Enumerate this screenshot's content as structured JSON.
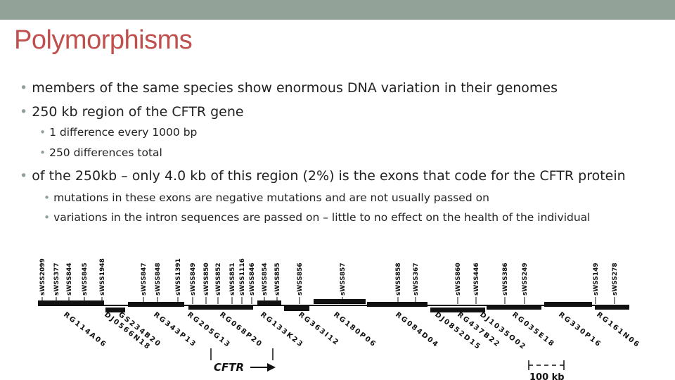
{
  "title": "Polymorphisms",
  "bullets": [
    {
      "level": 1,
      "text": "members of the same species show enormous DNA variation in their genomes"
    },
    {
      "level": 1,
      "text": "250 kb region of the CFTR gene"
    },
    {
      "level": 2,
      "text": "1 difference every 1000 bp"
    },
    {
      "level": 2,
      "text": "250 differences total"
    },
    {
      "level": 1,
      "text": "of the 250kb – only 4.0 kb of this region (2%) is the exons that code for the CFTR protein"
    },
    {
      "level": 2,
      "text": "mutations in these exons are negative mutations and are not usually passed on"
    },
    {
      "level": 2,
      "text": "variations in the intron sequences are passed on – little to no effect on the health of the individual"
    }
  ],
  "map": {
    "top_labels": [
      "sWSS2099",
      "sWSS377",
      "sWSS844",
      "sWSS845",
      "sWSS1948",
      "sWSS847",
      "sWSS848",
      "sWSS1391",
      "sWSS849",
      "sWSS850",
      "sWSS852",
      "sWSS851",
      "sWSS1116",
      "sWSS846",
      "sWSS854",
      "sWSS855",
      "sWSS856",
      "sWSS857",
      "sWSS858",
      "sWSS367",
      "sWSS860",
      "sWSS446",
      "sWSS386",
      "sWSS249",
      "sWSS149",
      "sWSS278"
    ],
    "bottom_labels": [
      "RG114A06",
      "GS234B20",
      "DJ0566N18",
      "RG343P13",
      "RG205G13",
      "RG068P20",
      "RG133K23",
      "RG363I12",
      "RG180P06",
      "RG084D04",
      "DJ0852D15",
      "RG437B22",
      "DJ1035O02",
      "RG035E18",
      "RG330P16",
      "RG161N06"
    ],
    "cftr_label": "CFTR",
    "scale_label": "100 kb"
  }
}
